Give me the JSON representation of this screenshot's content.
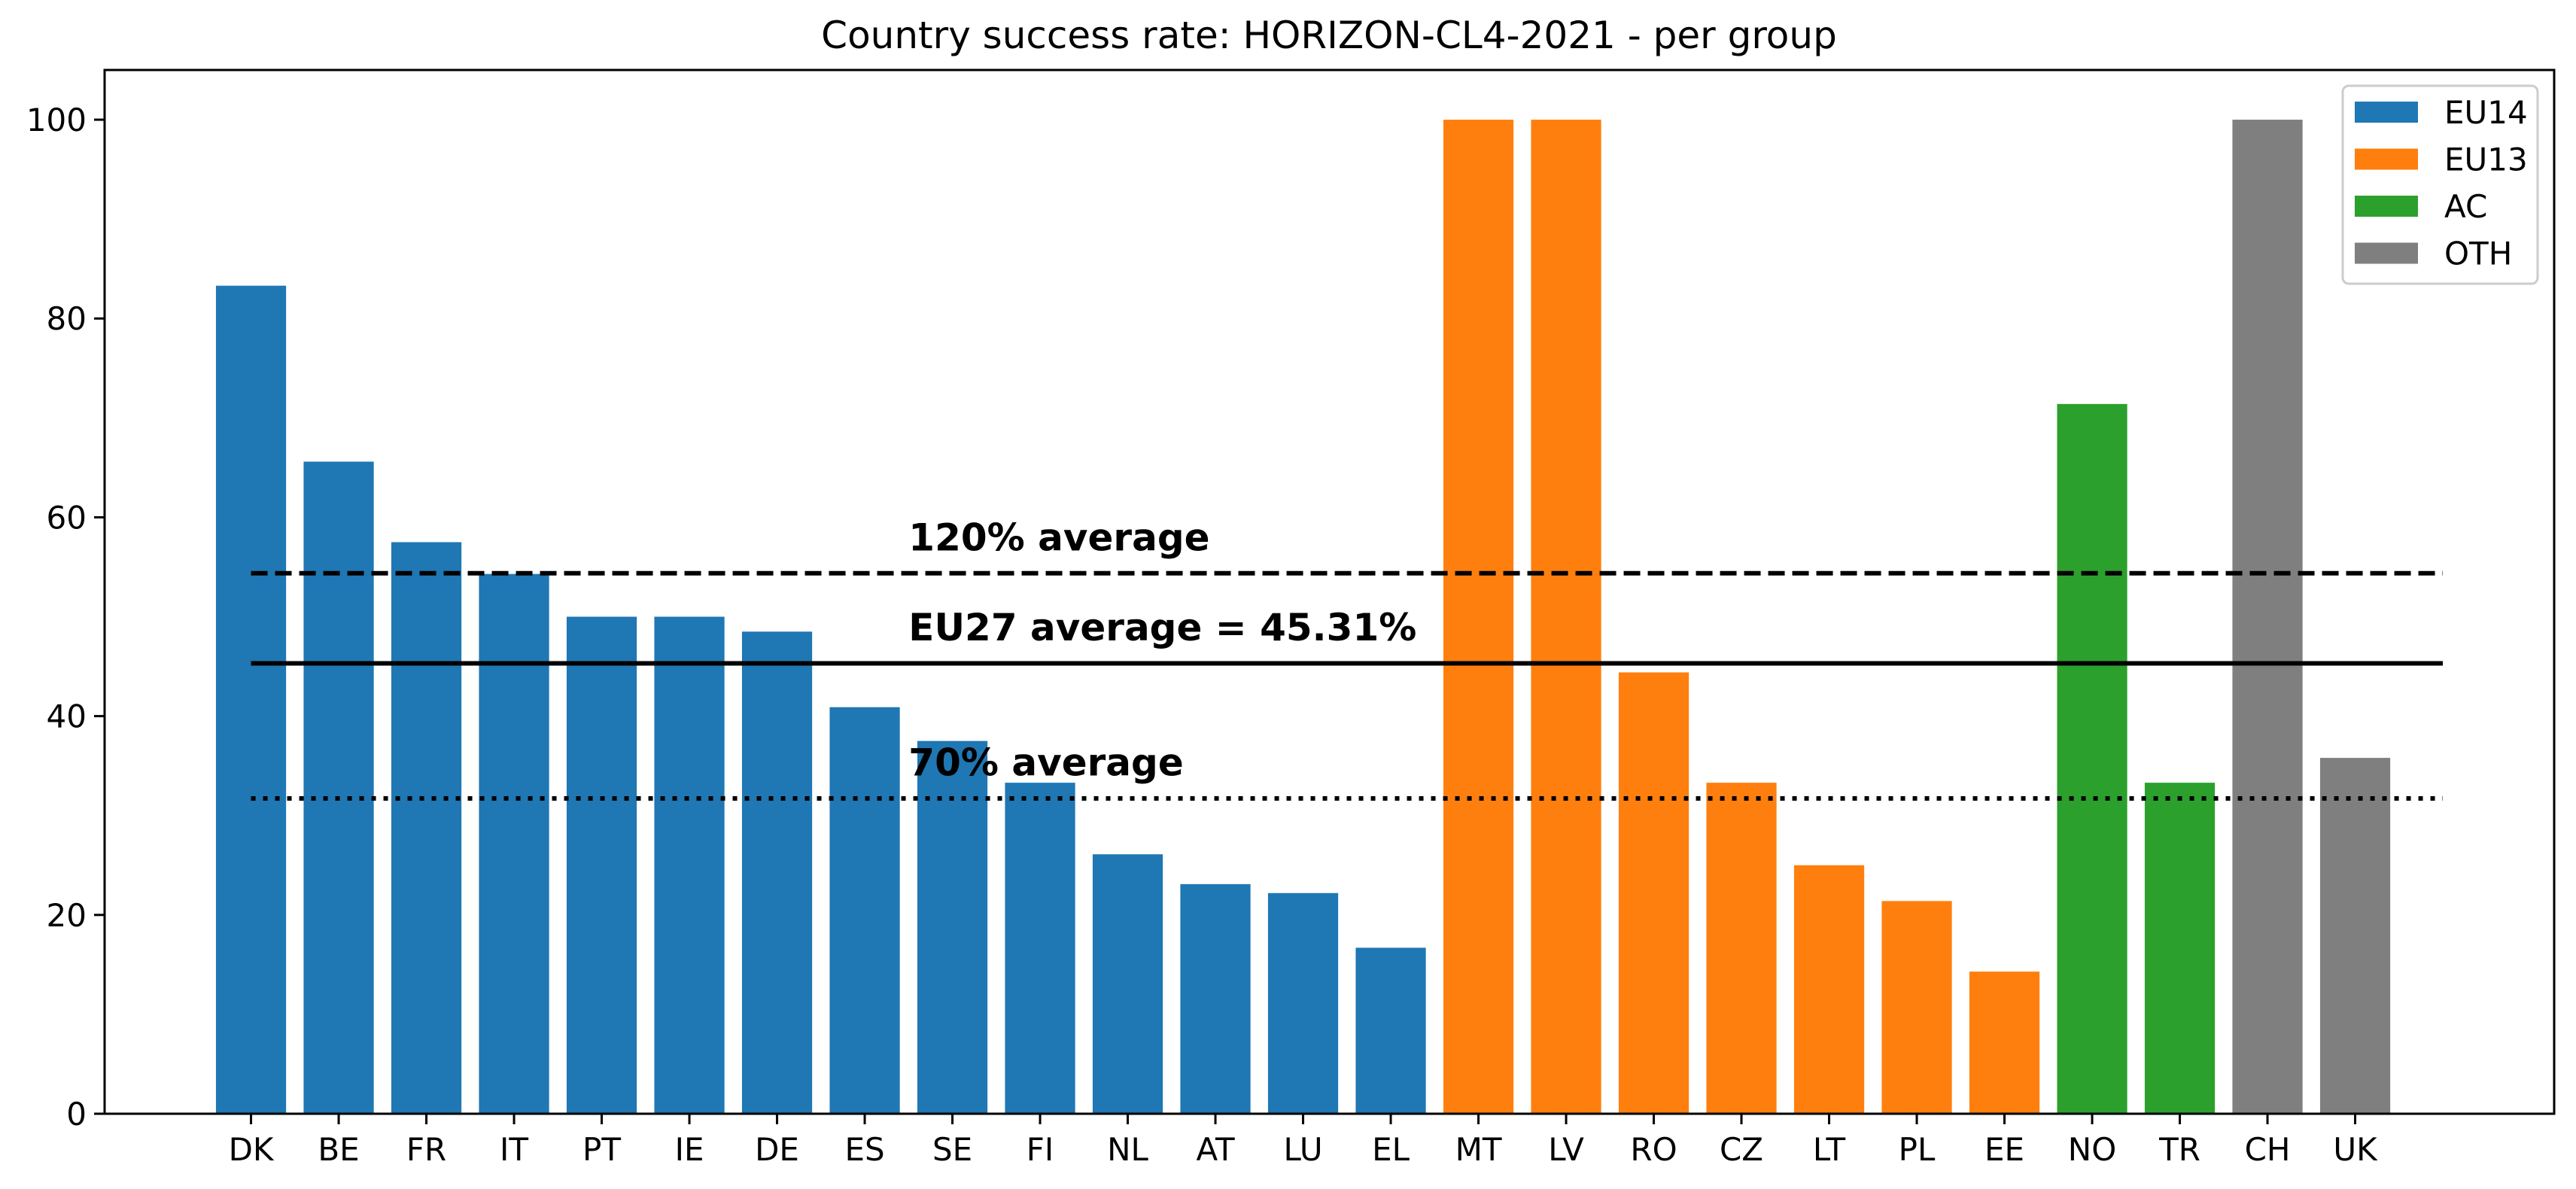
{
  "chart_data": {
    "type": "bar",
    "title": "Country success rate: HORIZON-CL4-2021 - per group",
    "xlabel": "",
    "ylabel": "",
    "ylim": [
      0,
      105
    ],
    "xlim": [
      -1.67,
      26.27
    ],
    "yticks": [
      0,
      20,
      40,
      60,
      80,
      100
    ],
    "grid": false,
    "legend_position": "top-right",
    "groups": [
      {
        "name": "EU14",
        "color": "#1f77b4"
      },
      {
        "name": "EU13",
        "color": "#ff7f0e"
      },
      {
        "name": "AC",
        "color": "#2ca02c"
      },
      {
        "name": "OTH",
        "color": "#7f7f7f"
      }
    ],
    "categories": [
      "DK",
      "BE",
      "FR",
      "IT",
      "PT",
      "IE",
      "DE",
      "ES",
      "SE",
      "FI",
      "NL",
      "AT",
      "LU",
      "EL",
      "MT",
      "LV",
      "RO",
      "CZ",
      "LT",
      "PL",
      "EE",
      "NO",
      "TR",
      "CH",
      "UK"
    ],
    "values": [
      83.3,
      65.6,
      57.5,
      54.3,
      50.0,
      50.0,
      48.5,
      40.9,
      37.5,
      33.3,
      26.1,
      23.1,
      22.2,
      16.7,
      100,
      100,
      44.4,
      33.3,
      25.0,
      21.4,
      14.3,
      71.4,
      33.3,
      100,
      35.8
    ],
    "group_of_bar": [
      "EU14",
      "EU14",
      "EU14",
      "EU14",
      "EU14",
      "EU14",
      "EU14",
      "EU14",
      "EU14",
      "EU14",
      "EU14",
      "EU14",
      "EU14",
      "EU14",
      "EU13",
      "EU13",
      "EU13",
      "EU13",
      "EU13",
      "EU13",
      "EU13",
      "AC",
      "AC",
      "OTH",
      "OTH"
    ],
    "reference_lines": [
      {
        "name": "120-percent-average",
        "value": 54.37,
        "style": "dashed",
        "label": "120% average"
      },
      {
        "name": "eu27-average",
        "value": 45.31,
        "style": "solid",
        "label": "EU27 average = 45.31%"
      },
      {
        "name": "70-percent-average",
        "value": 31.72,
        "style": "dotted",
        "label": "70% average"
      }
    ]
  }
}
